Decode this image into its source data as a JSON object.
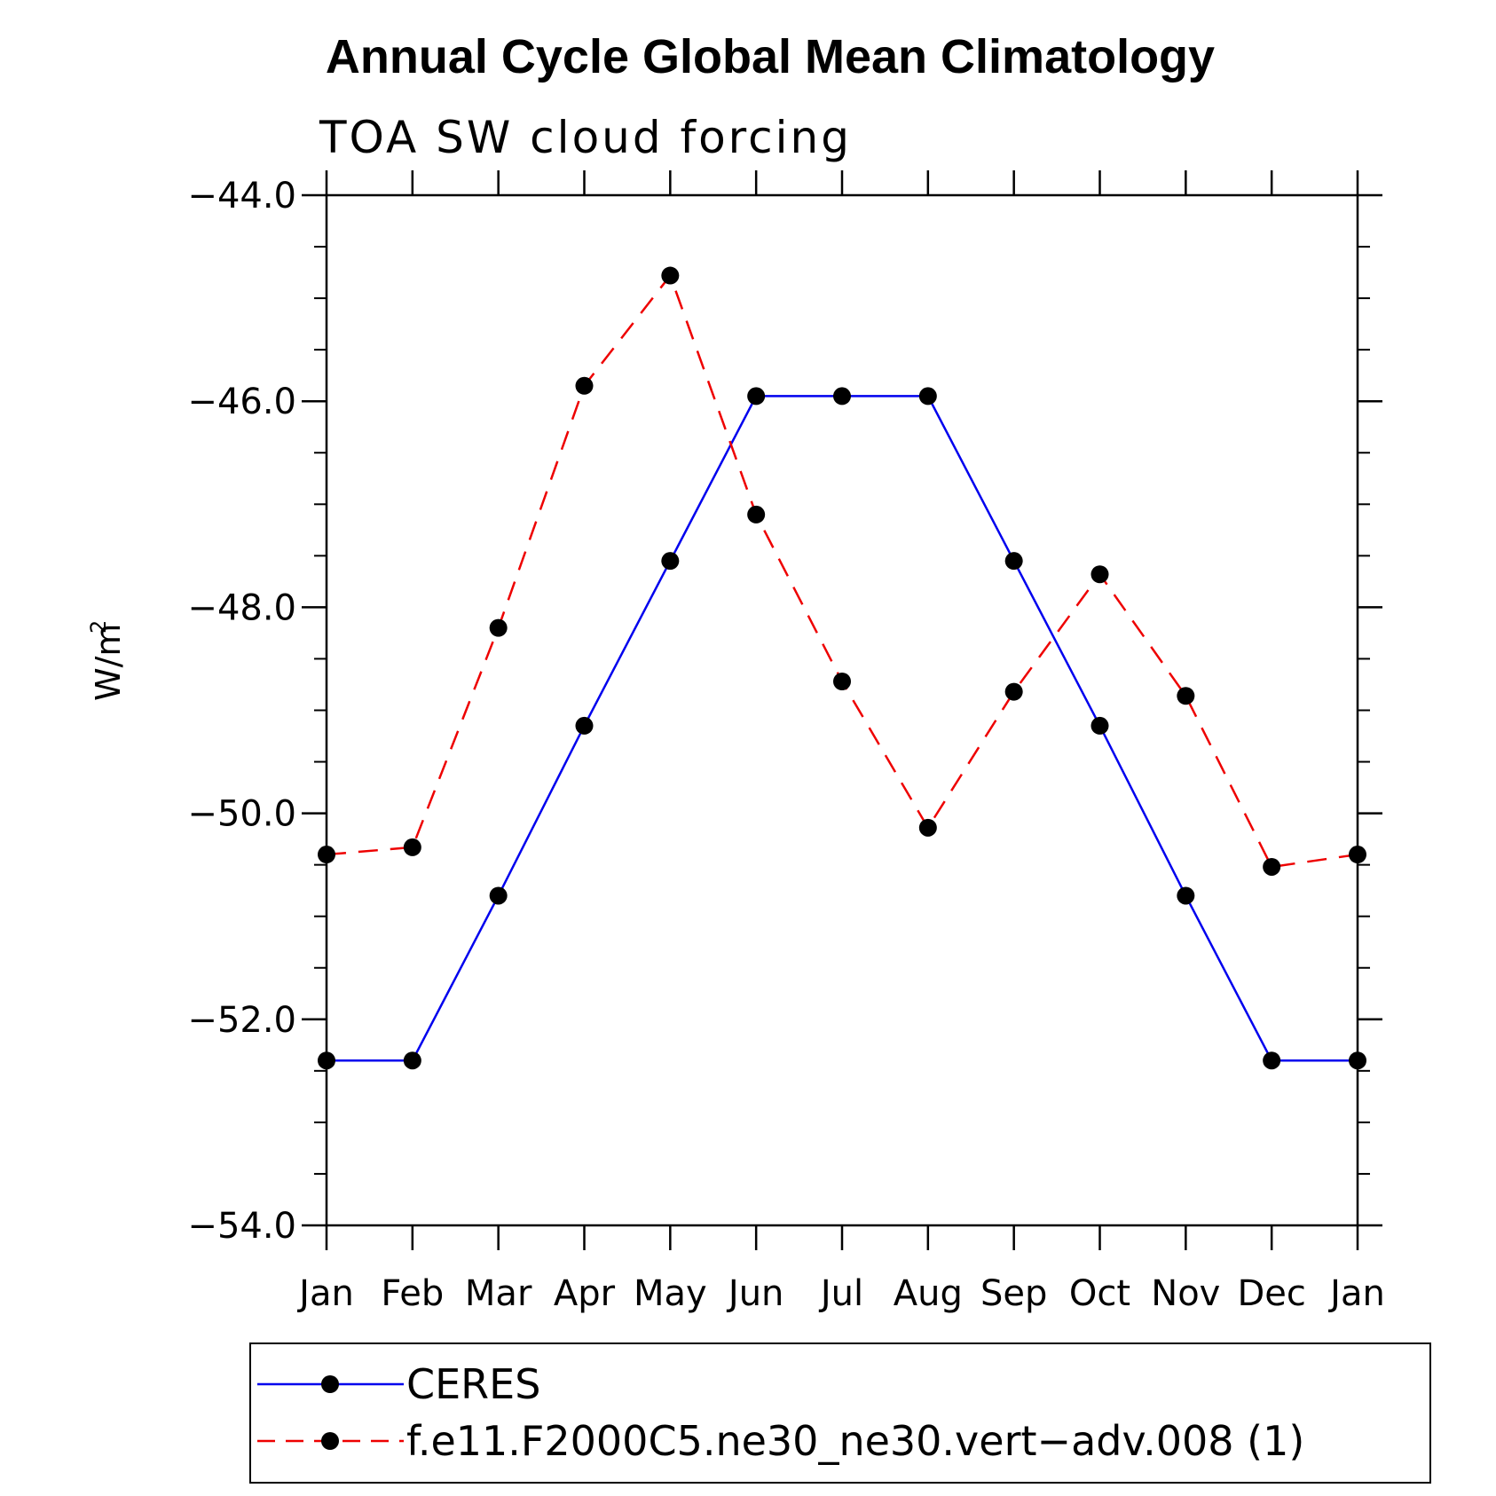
{
  "chart_data": {
    "type": "line",
    "title": "Annual Cycle Global Mean Climatology",
    "subtitle": "TOA SW cloud forcing",
    "ylabel": "W/m",
    "ylabel_superscript": "2",
    "xlabel": "",
    "categories": [
      "Jan",
      "Feb",
      "Mar",
      "Apr",
      "May",
      "Jun",
      "Jul",
      "Aug",
      "Sep",
      "Oct",
      "Nov",
      "Dec",
      "Jan"
    ],
    "ylim": [
      -54.0,
      -44.0
    ],
    "yticks": [
      -54.0,
      -52.0,
      -50.0,
      -48.0,
      -46.0,
      -44.0
    ],
    "ytick_labels": [
      "−54.0",
      "−52.0",
      "−50.0",
      "−48.0",
      "−46.0",
      "−44.0"
    ],
    "y_minor_step": 0.5,
    "grid": false,
    "legend_position": "bottom",
    "series": [
      {
        "name": "CERES",
        "color": "#0000ee",
        "line_style": "solid",
        "marker": "filled-circle",
        "values": [
          -52.4,
          -52.4,
          -50.8,
          -49.15,
          -47.55,
          -45.95,
          -45.95,
          -45.95,
          -47.55,
          -49.15,
          -50.8,
          -52.4,
          -52.4
        ]
      },
      {
        "name": "f.e11.F2000C5.ne30_ne30.vert−adv.008 (1)",
        "color": "#ee0000",
        "line_style": "dashed",
        "marker": "filled-circle",
        "values": [
          -50.4,
          -50.33,
          -48.2,
          -45.85,
          -44.78,
          -47.1,
          -48.72,
          -50.14,
          -48.82,
          -47.68,
          -48.86,
          -50.52,
          -50.4
        ]
      }
    ]
  }
}
